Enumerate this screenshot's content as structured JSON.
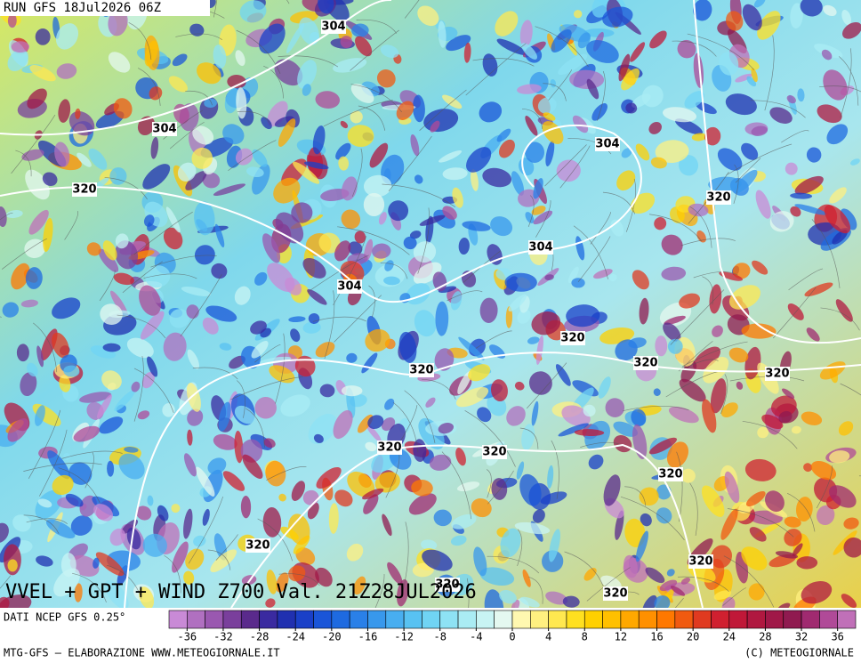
{
  "header": {
    "run": "RUN GFS 18Jul2026 06Z"
  },
  "map": {
    "title": "VVEL + GPT + WIND Z700 Val. 21Z28JUL2026",
    "contour_labels": [
      "304",
      "304",
      "320",
      "304",
      "320",
      "304",
      "304",
      "320",
      "320",
      "320",
      "320",
      "320",
      "320",
      "320",
      "320",
      "320",
      "320",
      "320"
    ]
  },
  "colorbar": {
    "source": "DATI NCEP GFS 0.25°",
    "bounds": [
      -38,
      38
    ],
    "ticks": [
      -36,
      -32,
      -28,
      -24,
      -20,
      -16,
      -12,
      -8,
      -4,
      0,
      4,
      8,
      12,
      16,
      20,
      24,
      28,
      32,
      36
    ],
    "colors": [
      "#c98ad6",
      "#b070c0",
      "#9a58b0",
      "#7a3f9c",
      "#5a2a8c",
      "#3a2aa0",
      "#2030b0",
      "#1a40c8",
      "#1a55d8",
      "#1e6ae0",
      "#2a80e8",
      "#3898ec",
      "#48aef0",
      "#58c2f2",
      "#70d4f4",
      "#8ee2f4",
      "#aaecf4",
      "#c8f4f4",
      "#e4f8f0",
      "#fff8b0",
      "#fff080",
      "#ffe850",
      "#ffe020",
      "#ffd000",
      "#ffc000",
      "#ffa800",
      "#ff9000",
      "#ff7800",
      "#f05a10",
      "#e03a20",
      "#d02030",
      "#c01838",
      "#b01840",
      "#a01848",
      "#901a50",
      "#a02a70",
      "#b04a98",
      "#c070b8"
    ]
  },
  "footer": {
    "left": "MTG-GFS — ELABORAZIONE WWW.METEOGIORNALE.IT",
    "right": "(C) METEOGIORNALE"
  }
}
